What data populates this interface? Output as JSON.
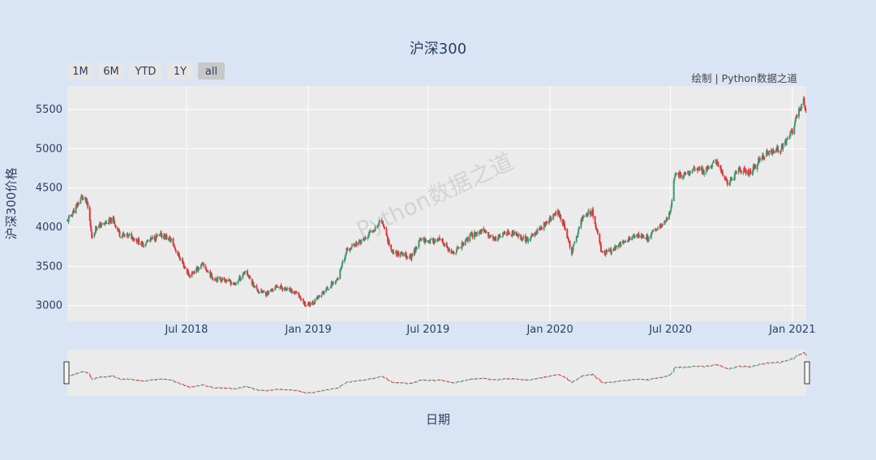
{
  "chart_data": {
    "type": "candlestick",
    "title": "沪深300",
    "xlabel": "日期",
    "ylabel": "沪深300价格",
    "annotation": "绘制 | Python数据之道",
    "watermark": "Python数据之道",
    "range_buttons": [
      {
        "label": "1M",
        "active": false
      },
      {
        "label": "6M",
        "active": false
      },
      {
        "label": "YTD",
        "active": false
      },
      {
        "label": "1Y",
        "active": false
      },
      {
        "label": "all",
        "active": true
      }
    ],
    "x_range": [
      "2018-01-02",
      "2021-01-22"
    ],
    "y_range": [
      2800,
      5800
    ],
    "y_ticks": [
      3000,
      3500,
      4000,
      4500,
      5000,
      5500
    ],
    "x_ticks": [
      {
        "date": "2018-07-01",
        "label": "Jul 2018"
      },
      {
        "date": "2019-01-01",
        "label": "Jan 2019"
      },
      {
        "date": "2019-07-01",
        "label": "Jul 2019"
      },
      {
        "date": "2020-01-01",
        "label": "Jan 2020"
      },
      {
        "date": "2020-07-01",
        "label": "Jul 2020"
      },
      {
        "date": "2021-01-01",
        "label": "Jan 2021"
      }
    ],
    "increasing_color": "#3d9970",
    "decreasing_color": "#e0353a",
    "background_color": "#ebebeb",
    "grid": true,
    "rangeslider": true,
    "series_close": [
      [
        "2018-01-02",
        4080
      ],
      [
        "2018-01-15",
        4250
      ],
      [
        "2018-01-24",
        4390
      ],
      [
        "2018-02-01",
        4300
      ],
      [
        "2018-02-09",
        3850
      ],
      [
        "2018-02-14",
        4000
      ],
      [
        "2018-03-01",
        4050
      ],
      [
        "2018-03-12",
        4090
      ],
      [
        "2018-03-23",
        3900
      ],
      [
        "2018-04-10",
        3880
      ],
      [
        "2018-04-25",
        3780
      ],
      [
        "2018-05-10",
        3850
      ],
      [
        "2018-05-25",
        3900
      ],
      [
        "2018-06-08",
        3830
      ],
      [
        "2018-06-20",
        3620
      ],
      [
        "2018-07-05",
        3380
      ],
      [
        "2018-07-25",
        3520
      ],
      [
        "2018-08-10",
        3350
      ],
      [
        "2018-08-28",
        3330
      ],
      [
        "2018-09-12",
        3270
      ],
      [
        "2018-09-28",
        3440
      ],
      [
        "2018-10-15",
        3200
      ],
      [
        "2018-10-30",
        3150
      ],
      [
        "2018-11-15",
        3250
      ],
      [
        "2018-11-30",
        3200
      ],
      [
        "2018-12-15",
        3150
      ],
      [
        "2018-12-28",
        3010
      ],
      [
        "2019-01-10",
        3050
      ],
      [
        "2019-01-25",
        3180
      ],
      [
        "2019-02-15",
        3350
      ],
      [
        "2019-02-28",
        3700
      ],
      [
        "2019-03-12",
        3780
      ],
      [
        "2019-03-28",
        3850
      ],
      [
        "2019-04-10",
        3980
      ],
      [
        "2019-04-22",
        4100
      ],
      [
        "2019-05-06",
        3700
      ],
      [
        "2019-05-20",
        3650
      ],
      [
        "2019-06-05",
        3620
      ],
      [
        "2019-06-20",
        3850
      ],
      [
        "2019-07-05",
        3820
      ],
      [
        "2019-07-20",
        3830
      ],
      [
        "2019-08-06",
        3650
      ],
      [
        "2019-08-20",
        3770
      ],
      [
        "2019-09-05",
        3900
      ],
      [
        "2019-09-20",
        3950
      ],
      [
        "2019-10-10",
        3850
      ],
      [
        "2019-10-28",
        3930
      ],
      [
        "2019-11-12",
        3900
      ],
      [
        "2019-11-28",
        3830
      ],
      [
        "2019-12-15",
        3970
      ],
      [
        "2019-12-31",
        4090
      ],
      [
        "2020-01-14",
        4200
      ],
      [
        "2020-01-23",
        4000
      ],
      [
        "2020-02-03",
        3680
      ],
      [
        "2020-02-20",
        4150
      ],
      [
        "2020-03-05",
        4200
      ],
      [
        "2020-03-20",
        3650
      ],
      [
        "2020-04-02",
        3700
      ],
      [
        "2020-04-20",
        3800
      ],
      [
        "2020-05-10",
        3900
      ],
      [
        "2020-05-28",
        3860
      ],
      [
        "2020-06-12",
        3990
      ],
      [
        "2020-06-30",
        4160
      ],
      [
        "2020-07-08",
        4700
      ],
      [
        "2020-07-20",
        4650
      ],
      [
        "2020-08-05",
        4750
      ],
      [
        "2020-08-20",
        4710
      ],
      [
        "2020-09-08",
        4850
      ],
      [
        "2020-09-25",
        4550
      ],
      [
        "2020-10-15",
        4750
      ],
      [
        "2020-10-30",
        4690
      ],
      [
        "2020-11-15",
        4900
      ],
      [
        "2020-11-30",
        4950
      ],
      [
        "2020-12-15",
        5000
      ],
      [
        "2020-12-31",
        5210
      ],
      [
        "2021-01-10",
        5500
      ],
      [
        "2021-01-18",
        5600
      ],
      [
        "2021-01-22",
        5450
      ]
    ]
  }
}
